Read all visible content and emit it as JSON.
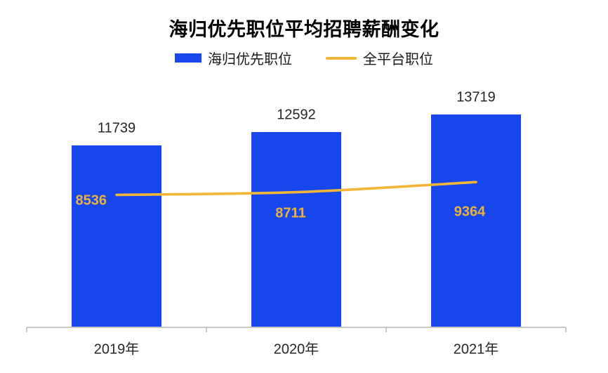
{
  "title": "海归优先职位平均招聘薪酬变化",
  "legend": [
    {
      "label": "海归优先职位",
      "type": "bar",
      "color": "#1747EC"
    },
    {
      "label": "全平台职位",
      "type": "line",
      "color": "#F2B637"
    }
  ],
  "colors": {
    "bar": "#1747EC",
    "line": "#F2B637",
    "line_label": "#E9B23C",
    "axis": "#C8C8C8",
    "text": "#262626",
    "title": "#000000"
  },
  "chart_data": {
    "type": "bar",
    "title": "海归优先职位平均招聘薪酬变化",
    "categories": [
      "2019年",
      "2020年",
      "2021年"
    ],
    "series": [
      {
        "name": "海归优先职位",
        "type": "bar",
        "values": [
          11739,
          12592,
          13719
        ],
        "color": "#1747EC",
        "label_color": "#262626"
      },
      {
        "name": "全平台职位",
        "type": "line",
        "values": [
          8536,
          8711,
          9364
        ],
        "color": "#F2B637",
        "label_color": "#E9B23C"
      }
    ],
    "xlabel": "",
    "ylabel": "",
    "ylim": [
      0,
      14500
    ],
    "grid": false,
    "legend_position": "top",
    "data_labels": true
  }
}
